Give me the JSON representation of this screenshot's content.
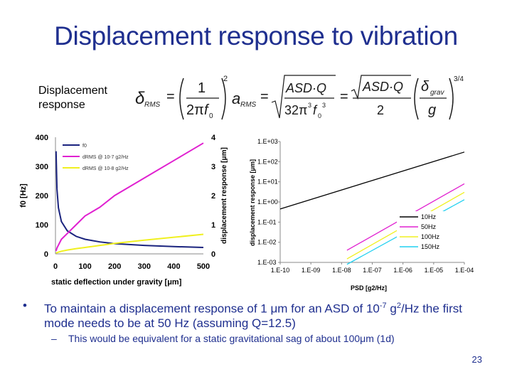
{
  "slide": {
    "title": "Displacement response to vibration",
    "displacement_label_line1": "Displacement",
    "displacement_label_line2": "response",
    "page_number": "23"
  },
  "bullet": {
    "text_a": "To maintain a displacement response of 1 μm for an ASD of 10",
    "exp_a": "-7",
    "text_b": " g",
    "exp_b": "2",
    "text_c": "/Hz the first mode needs to be at 50 Hz (assuming Q=12.5)",
    "sub_dash": "–",
    "sub": "This would be equivalent for a static gravitational sag of about 100μm (1d)"
  },
  "formula": {
    "delta": "δ",
    "rms_sub": "RMS",
    "one": "1",
    "two_pi": "2π",
    "f0": "f",
    "zero": "0",
    "square": "2",
    "a": "a",
    "asd_q": "ASD·Q",
    "thirty_two": "32π",
    "cube": "3",
    "two": "2",
    "grav_sub": "grav",
    "g": "g",
    "exponent": "3/4",
    "equals": "="
  },
  "chart_data": [
    {
      "type": "line",
      "xlabel": "static deflection under gravity [μm]",
      "ylabel": "f0 [Hz]",
      "ylabel_right": "displacement response [μm]",
      "x_ticks": [
        "0",
        "100",
        "200",
        "300",
        "400",
        "500"
      ],
      "y_ticks": [
        "0",
        "100",
        "200",
        "300",
        "400"
      ],
      "y2_ticks": [
        "0",
        "1",
        "2",
        "3",
        "4"
      ],
      "xlim": [
        0,
        500
      ],
      "ylim": [
        0,
        400
      ],
      "y2lim": [
        0,
        4
      ],
      "legend": [
        "f0",
        "dRMS @ 10-7 g2/Hz",
        "dRMS @ 10-8 g2/Hz"
      ],
      "legend_placement": "top-right",
      "colors": [
        "#1a237e",
        "#e020d0",
        "#f0f020"
      ],
      "series": [
        {
          "name": "f0",
          "axis": "left",
          "x": [
            2,
            5,
            10,
            20,
            40,
            70,
            100,
            150,
            200,
            300,
            400,
            500
          ],
          "values": [
            352,
            223,
            158,
            111,
            79,
            60,
            50,
            41,
            35,
            29,
            25,
            22
          ]
        },
        {
          "name": "dRMS @ 10-7 g2/Hz",
          "axis": "right",
          "x": [
            2,
            5,
            10,
            20,
            40,
            70,
            100,
            150,
            200,
            300,
            400,
            500
          ],
          "values": [
            0.1,
            0.2,
            0.3,
            0.5,
            0.7,
            1.0,
            1.3,
            1.6,
            2.0,
            2.6,
            3.2,
            3.8
          ]
        },
        {
          "name": "dRMS @ 10-8 g2/Hz",
          "axis": "right",
          "x": [
            2,
            5,
            10,
            20,
            40,
            70,
            100,
            150,
            200,
            300,
            400,
            500
          ],
          "values": [
            0.02,
            0.04,
            0.06,
            0.09,
            0.13,
            0.18,
            0.22,
            0.29,
            0.36,
            0.47,
            0.57,
            0.67
          ]
        }
      ]
    },
    {
      "type": "line",
      "log_x": true,
      "log_y": true,
      "xlabel": "PSD [g2/Hz]",
      "ylabel": "displacement response [μm]",
      "x_ticks": [
        "1.E-10",
        "1.E-09",
        "1.E-08",
        "1.E-07",
        "1.E-06",
        "1.E-05",
        "1.E-04"
      ],
      "y_ticks": [
        "1.E+03",
        "1.E+02",
        "1.E+01",
        "1.E+00",
        "1.E-01",
        "1.E-02",
        "1.E-03"
      ],
      "xlim": [
        1e-10,
        0.0001
      ],
      "ylim": [
        0.001,
        1000.0
      ],
      "legend": [
        "10Hz",
        "50Hz",
        "100Hz",
        "150Hz"
      ],
      "legend_placement": "bottom-right",
      "colors": [
        "#000000",
        "#e020d0",
        "#f0f020",
        "#20d0f0"
      ],
      "series": [
        {
          "name": "10Hz",
          "x": [
            1e-10,
            0.0001
          ],
          "values": [
            0.45,
            300
          ]
        },
        {
          "name": "50Hz",
          "x": [
            1.5e-08,
            0.0001
          ],
          "values": [
            0.004,
            8
          ]
        },
        {
          "name": "100Hz",
          "x": [
            1.5e-08,
            0.0001
          ],
          "values": [
            0.0015,
            3
          ]
        },
        {
          "name": "150Hz",
          "x": [
            1.5e-08,
            0.0001
          ],
          "values": [
            0.0008,
            1.3
          ]
        }
      ]
    }
  ]
}
